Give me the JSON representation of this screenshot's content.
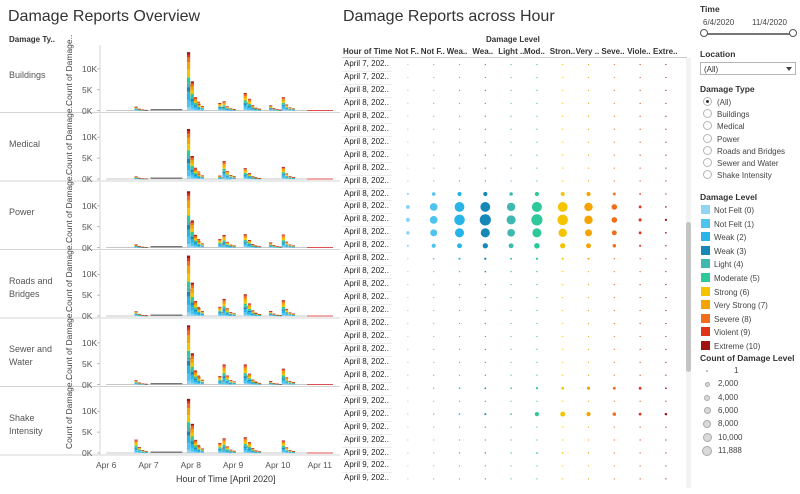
{
  "left_title": "Damage Reports Overview",
  "right_title": "Damage Reports across Hour",
  "damage_type_header": "Damage Ty..",
  "count_axis_label": "Count of Damage..",
  "x_axis_title": "Hour of Time [April 2020]",
  "x_ticks": [
    "Apr 6",
    "Apr 7",
    "Apr 8",
    "Apr 9",
    "Apr 10",
    "Apr 11"
  ],
  "y_ticks": [
    "10K",
    "5K",
    "0K"
  ],
  "damage_types": [
    "Buildings",
    "Medical",
    "Power",
    "Roads and\nBridges",
    "Sewer and\nWater",
    "Shake\nIntensity"
  ],
  "level_header": "Damage Level",
  "hour_header": "Hour of Time",
  "level_short": [
    "Not F..",
    "Not F..",
    "Wea..",
    "Wea..",
    "Light ..",
    "Mod..",
    "Stron..",
    "Very ..",
    "Seve..",
    "Viole..",
    "Extre.."
  ],
  "hour_rows": [
    "April 7, 202..",
    "April 7, 202..",
    "April 8, 202..",
    "April 8, 202..",
    "April 8, 202..",
    "April 8, 202..",
    "April 8, 202..",
    "April 8, 202..",
    "April 8, 202..",
    "April 8, 202..",
    "April 8, 202..",
    "April 8, 202..",
    "April 8, 202..",
    "April 8, 202..",
    "April 8, 202..",
    "April 8, 202..",
    "April 8, 202..",
    "April 8, 202..",
    "April 8, 202..",
    "April 8, 202..",
    "April 8, 202..",
    "April 8, 202..",
    "April 8, 202..",
    "April 8, 202..",
    "April 8, 202..",
    "April 8, 202..",
    "April 9, 202..",
    "April 9, 202..",
    "April 9, 202..",
    "April 9, 202..",
    "April 9, 202..",
    "April 9, 202..",
    "April 9, 202.."
  ],
  "controls": {
    "time_title": "Time",
    "time_start": "6/4/2020",
    "time_end": "11/4/2020",
    "location_title": "Location",
    "location_value": "(All)",
    "damage_type_title": "Damage Type",
    "damage_type_options": [
      "(All)",
      "Buildings",
      "Medical",
      "Power",
      "Roads and Bridges",
      "Sewer and Water",
      "Shake Intensity"
    ],
    "damage_level_title": "Damage Level",
    "damage_levels": [
      {
        "label": "Not Felt (0)",
        "color": "#8fd3f5"
      },
      {
        "label": "Not Felt (1)",
        "color": "#4fc3f0"
      },
      {
        "label": "Weak (2)",
        "color": "#27b4e8"
      },
      {
        "label": "Weak (3)",
        "color": "#1588b8"
      },
      {
        "label": "Light (4)",
        "color": "#3fb8b0"
      },
      {
        "label": "Moderate (5)",
        "color": "#2ec99a"
      },
      {
        "label": "Strong (6)",
        "color": "#f5c400"
      },
      {
        "label": "Very Strong (7)",
        "color": "#f5a300"
      },
      {
        "label": "Severe (8)",
        "color": "#f06d1a"
      },
      {
        "label": "Violent (9)",
        "color": "#e03416"
      },
      {
        "label": "Extreme (10)",
        "color": "#a01212"
      }
    ],
    "count_title": "Count of Damage Level",
    "count_legend": [
      "1",
      "2,000",
      "4,000",
      "6,000",
      "8,000",
      "10,000",
      "11,888"
    ]
  },
  "chart_data": {
    "type": "bar",
    "stacked": true,
    "x_categories": [
      "Apr 6",
      "Apr 7",
      "Apr 8",
      "Apr 9",
      "Apr 10",
      "Apr 11"
    ],
    "ylim": [
      0,
      15000
    ],
    "series": [
      {
        "name": "Buildings",
        "peaks": [
          [
            0.72,
            900
          ],
          [
            1.96,
            14000
          ],
          [
            2.05,
            7000
          ],
          [
            2.7,
            1800
          ],
          [
            2.8,
            2200
          ],
          [
            3.3,
            4200
          ],
          [
            3.4,
            2800
          ],
          [
            3.9,
            1200
          ],
          [
            4.2,
            3200
          ]
        ]
      },
      {
        "name": "Medical",
        "peaks": [
          [
            0.72,
            600
          ],
          [
            1.96,
            12000
          ],
          [
            2.05,
            5500
          ],
          [
            2.7,
            800
          ],
          [
            2.8,
            4300
          ],
          [
            3.3,
            2600
          ],
          [
            3.4,
            1400
          ],
          [
            4.2,
            2900
          ]
        ]
      },
      {
        "name": "Power",
        "peaks": [
          [
            0.72,
            700
          ],
          [
            1.96,
            13500
          ],
          [
            2.05,
            6500
          ],
          [
            2.7,
            2000
          ],
          [
            2.8,
            3000
          ],
          [
            3.3,
            3200
          ],
          [
            3.4,
            1800
          ],
          [
            3.9,
            1200
          ],
          [
            4.2,
            3100
          ]
        ]
      },
      {
        "name": "Roads and Bridges",
        "peaks": [
          [
            0.72,
            1100
          ],
          [
            1.96,
            14500
          ],
          [
            2.05,
            8000
          ],
          [
            2.7,
            2200
          ],
          [
            2.8,
            4100
          ],
          [
            3.3,
            5200
          ],
          [
            3.4,
            3000
          ],
          [
            3.9,
            1200
          ],
          [
            4.2,
            3800
          ]
        ]
      },
      {
        "name": "Sewer and Water",
        "peaks": [
          [
            0.72,
            1000
          ],
          [
            1.96,
            14200
          ],
          [
            2.05,
            7500
          ],
          [
            2.7,
            2000
          ],
          [
            2.8,
            4800
          ],
          [
            3.3,
            4800
          ],
          [
            3.4,
            2600
          ],
          [
            3.9,
            800
          ],
          [
            4.2,
            3800
          ]
        ]
      },
      {
        "name": "Shake Intensity",
        "peaks": [
          [
            0.72,
            3200
          ],
          [
            1.96,
            13000
          ],
          [
            2.05,
            7000
          ],
          [
            2.7,
            2400
          ],
          [
            2.8,
            3500
          ],
          [
            3.3,
            3800
          ],
          [
            3.4,
            2600
          ],
          [
            4.2,
            3000
          ]
        ]
      }
    ]
  }
}
